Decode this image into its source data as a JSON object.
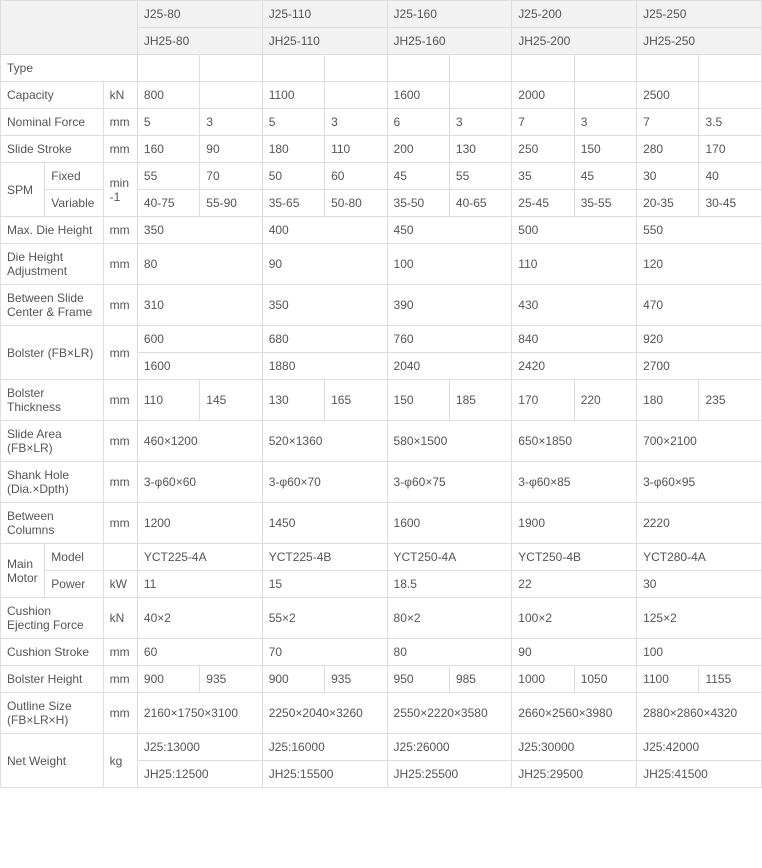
{
  "header": {
    "models_j": [
      "J25-80",
      "J25-110",
      "J25-160",
      "J25-200",
      "J25-250"
    ],
    "models_jh": [
      "JH25-80",
      "JH25-110",
      "JH25-160",
      "JH25-200",
      "JH25-250"
    ]
  },
  "labels": {
    "type": "Type",
    "capacity": "Capacity",
    "nominal_force": "Nominal Force",
    "slide_stroke": "Slide Stroke",
    "spm": "SPM",
    "fixed": "Fixed",
    "variable": "Variable",
    "max_die_height": "Max. Die Height",
    "die_height_adj": "Die Height Adjustment",
    "between_slide": "Between Slide Center & Frame",
    "bolster_fb_lr": "Bolster (FB×LR)",
    "bolster_thickness": "Bolster Thickness",
    "slide_area": "Slide Area (FB×LR)",
    "shank_hole": "Shank Hole (Dia.×Dpth)",
    "between_columns": "Between Columns",
    "main_motor": "Main Motor",
    "model": "Model",
    "power": "Power",
    "cushion_force": "Cushion Ejecting Force",
    "cushion_stroke": "Cushion Stroke",
    "bolster_height": "Bolster Height",
    "outline_size": "Outline Size (FB×LR×H)",
    "net_weight": "Net Weight"
  },
  "units": {
    "kn": "kN",
    "mm": "mm",
    "min1": "min-1",
    "kw": "kW",
    "kg": "kg"
  },
  "data": {
    "capacity": [
      "800",
      "1100",
      "1600",
      "2000",
      "2500"
    ],
    "nominal_force": [
      [
        "5",
        "3"
      ],
      [
        "5",
        "3"
      ],
      [
        "6",
        "3"
      ],
      [
        "7",
        "3"
      ],
      [
        "7",
        "3.5"
      ]
    ],
    "slide_stroke": [
      [
        "160",
        "90"
      ],
      [
        "180",
        "110"
      ],
      [
        "200",
        "130"
      ],
      [
        "250",
        "150"
      ],
      [
        "280",
        "170"
      ]
    ],
    "spm_fixed": [
      [
        "55",
        "70"
      ],
      [
        "50",
        "60"
      ],
      [
        "45",
        "55"
      ],
      [
        "35",
        "45"
      ],
      [
        "30",
        "40"
      ]
    ],
    "spm_variable": [
      [
        "40-75",
        "55-90"
      ],
      [
        "35-65",
        "50-80"
      ],
      [
        "35-50",
        "40-65"
      ],
      [
        "25-45",
        "35-55"
      ],
      [
        "20-35",
        "30-45"
      ]
    ],
    "max_die_height": [
      "350",
      "400",
      "450",
      "500",
      "550"
    ],
    "die_height_adj": [
      "80",
      "90",
      "100",
      "110",
      "120"
    ],
    "between_slide": [
      "310",
      "350",
      "390",
      "430",
      "470"
    ],
    "bolster_fb": [
      "600",
      "680",
      "760",
      "840",
      "920"
    ],
    "bolster_lr": [
      "1600",
      "1880",
      "2040",
      "2420",
      "2700"
    ],
    "bolster_thickness": [
      [
        "110",
        "145"
      ],
      [
        "130",
        "165"
      ],
      [
        "150",
        "185"
      ],
      [
        "170",
        "220"
      ],
      [
        "180",
        "235"
      ]
    ],
    "slide_area": [
      "460×1200",
      "520×1360",
      "580×1500",
      "650×1850",
      "700×2100"
    ],
    "shank_hole": [
      "3-φ60×60",
      "3-φ60×70",
      "3-φ60×75",
      "3-φ60×85",
      "3-φ60×95"
    ],
    "between_columns": [
      "1200",
      "1450",
      "1600",
      "1900",
      "2220"
    ],
    "motor_model": [
      "YCT225-4A",
      "YCT225-4B",
      "YCT250-4A",
      "YCT250-4B",
      "YCT280-4A"
    ],
    "motor_power": [
      "11",
      "15",
      "18.5",
      "22",
      "30"
    ],
    "cushion_force": [
      "40×2",
      "55×2",
      "80×2",
      "100×2",
      "125×2"
    ],
    "cushion_stroke": [
      "60",
      "70",
      "80",
      "90",
      "100"
    ],
    "bolster_height": [
      [
        "900",
        "935"
      ],
      [
        "900",
        "935"
      ],
      [
        "950",
        "985"
      ],
      [
        "1000",
        "1050"
      ],
      [
        "1100",
        "1155"
      ]
    ],
    "outline_size": [
      "2160×1750×3100",
      "2250×2040×3260",
      "2550×2220×3580",
      "2660×2560×3980",
      "2880×2860×4320"
    ],
    "net_weight_j": [
      "J25:13000",
      "J25:16000",
      "J25:26000",
      "J25:30000",
      "J25:42000"
    ],
    "net_weight_jh": [
      "JH25:12500",
      "JH25:15500",
      "JH25:25500",
      "JH25:29500",
      "JH25:41500"
    ]
  }
}
